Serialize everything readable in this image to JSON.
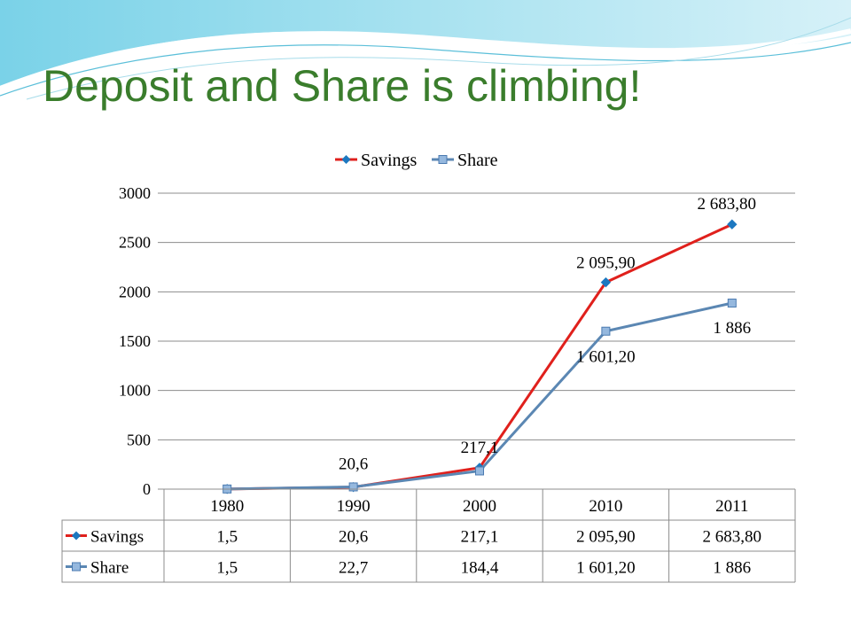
{
  "slide": {
    "title": "Deposit and Share is climbing!",
    "accent_color": "#3a7d2c"
  },
  "chart_data": {
    "type": "line",
    "categories": [
      "1980",
      "1990",
      "2000",
      "2010",
      "2011"
    ],
    "series": [
      {
        "name": "Savings",
        "values": [
          1.5,
          20.6,
          217.1,
          2095.9,
          2683.8
        ],
        "table_labels": [
          "1,5",
          "20,6",
          "217,1",
          "2 095,90",
          "2 683,80"
        ],
        "data_labels": [
          "",
          "20,6",
          "217,1",
          "2 095,90",
          "2 683,80"
        ],
        "color": "#e0201c",
        "marker": "diamond"
      },
      {
        "name": "Share",
        "values": [
          1.5,
          22.7,
          184.4,
          1601.2,
          1886
        ],
        "table_labels": [
          "1,5",
          "22,7",
          "184,4",
          "1 601,20",
          "1 886"
        ],
        "data_labels": [
          "",
          "",
          "",
          "1 601,20",
          "1 886"
        ],
        "color": "#5b87b3",
        "marker": "square"
      }
    ],
    "ylim": [
      0,
      3000
    ],
    "yticks": [
      "0",
      "500",
      "1000",
      "1500",
      "2000",
      "2500",
      "3000"
    ],
    "legend_position": "top",
    "grid": true,
    "data_table": true
  }
}
